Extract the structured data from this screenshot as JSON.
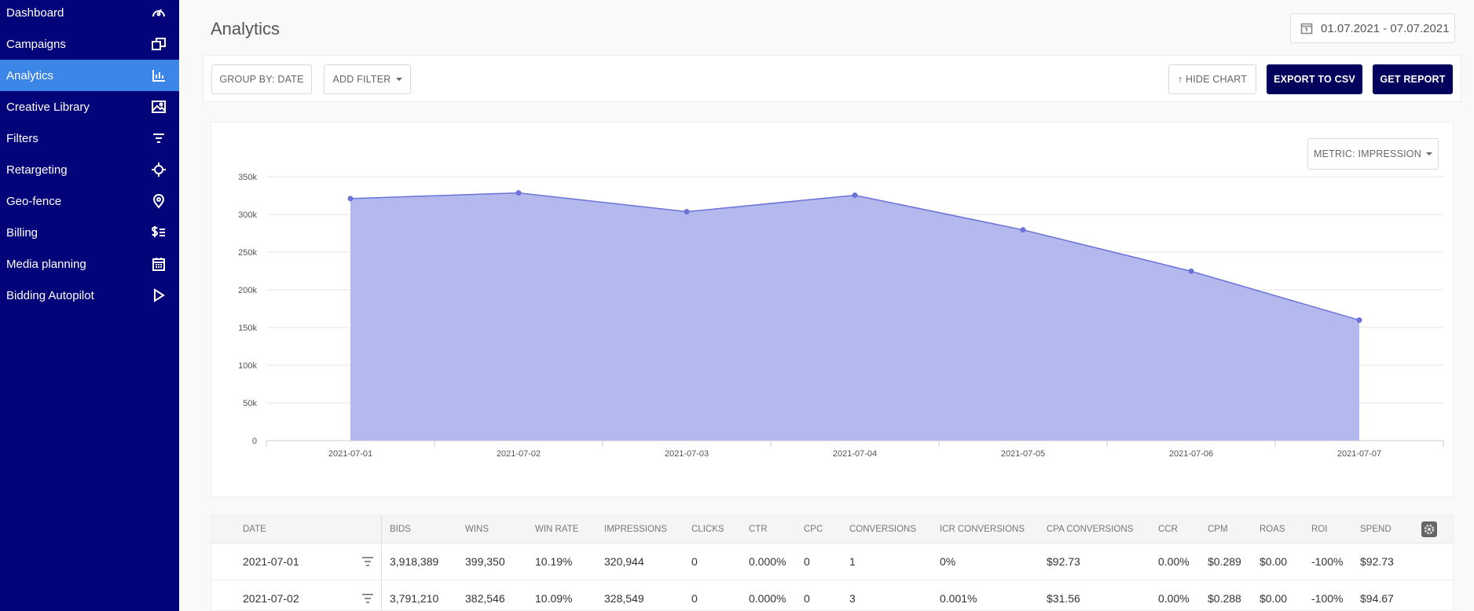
{
  "sidebar": {
    "items": [
      {
        "label": "Dashboard",
        "icon": "gauge-icon"
      },
      {
        "label": "Campaigns",
        "icon": "windows-icon"
      },
      {
        "label": "Analytics",
        "icon": "bar-chart-icon",
        "active": true
      },
      {
        "label": "Creative Library",
        "icon": "image-icon"
      },
      {
        "label": "Filters",
        "icon": "filter-icon"
      },
      {
        "label": "Retargeting",
        "icon": "crosshair-icon"
      },
      {
        "label": "Geo-fence",
        "icon": "map-pin-icon"
      },
      {
        "label": "Billing",
        "icon": "billing-icon"
      },
      {
        "label": "Media planning",
        "icon": "calendar-icon"
      },
      {
        "label": "Bidding Autopilot",
        "icon": "play-icon"
      }
    ]
  },
  "header": {
    "title": "Analytics",
    "date_range": "01.07.2021 - 07.07.2021"
  },
  "toolbar": {
    "group_by": "GROUP BY: DATE",
    "add_filter": "ADD FILTER",
    "hide_chart": "↑ HIDE CHART",
    "export_csv": "EXPORT TO CSV",
    "get_report": "GET REPORT"
  },
  "metric_selector": "METRIC: IMPRESSION",
  "chart_data": {
    "type": "area",
    "x": [
      "2021-07-01",
      "2021-07-02",
      "2021-07-03",
      "2021-07-04",
      "2021-07-05",
      "2021-07-06",
      "2021-07-07"
    ],
    "series": [
      {
        "values": [
          320944,
          328549,
          303600,
          325400,
          279500,
          224600,
          159800
        ]
      }
    ],
    "y_ticks": [
      "0",
      "50k",
      "100k",
      "150k",
      "200k",
      "250k",
      "300k",
      "350k"
    ],
    "ylim": [
      0,
      350000
    ],
    "grid": true,
    "colors": {
      "line": "#6b73d9",
      "fill": "#b3b8ed"
    }
  },
  "table": {
    "headers": [
      "DATE",
      "BIDS",
      "WINS",
      "WIN RATE",
      "IMPRESSIONS",
      "CLICKS",
      "CTR",
      "CPC",
      "CONVERSIONS",
      "ICR CONVERSIONS",
      "CPA CONVERSIONS",
      "CCR",
      "CPM",
      "ROAS",
      "ROI",
      "SPEND"
    ],
    "rows": [
      [
        "2021-07-01",
        "3,918,389",
        "399,350",
        "10.19%",
        "320,944",
        "0",
        "0.000%",
        "0",
        "1",
        "0%",
        "$92.73",
        "0.00%",
        "$0.289",
        "$0.00",
        "-100%",
        "$92.73"
      ],
      [
        "2021-07-02",
        "3,791,210",
        "382,546",
        "10.09%",
        "328,549",
        "0",
        "0.000%",
        "0",
        "3",
        "0.001%",
        "$31.56",
        "0.00%",
        "$0.288",
        "$0.00",
        "-100%",
        "$94.67"
      ]
    ]
  },
  "colors": {
    "sidebar_bg": "#03037a",
    "active_item": "#3b86e6",
    "primary_button": "#03035e"
  }
}
